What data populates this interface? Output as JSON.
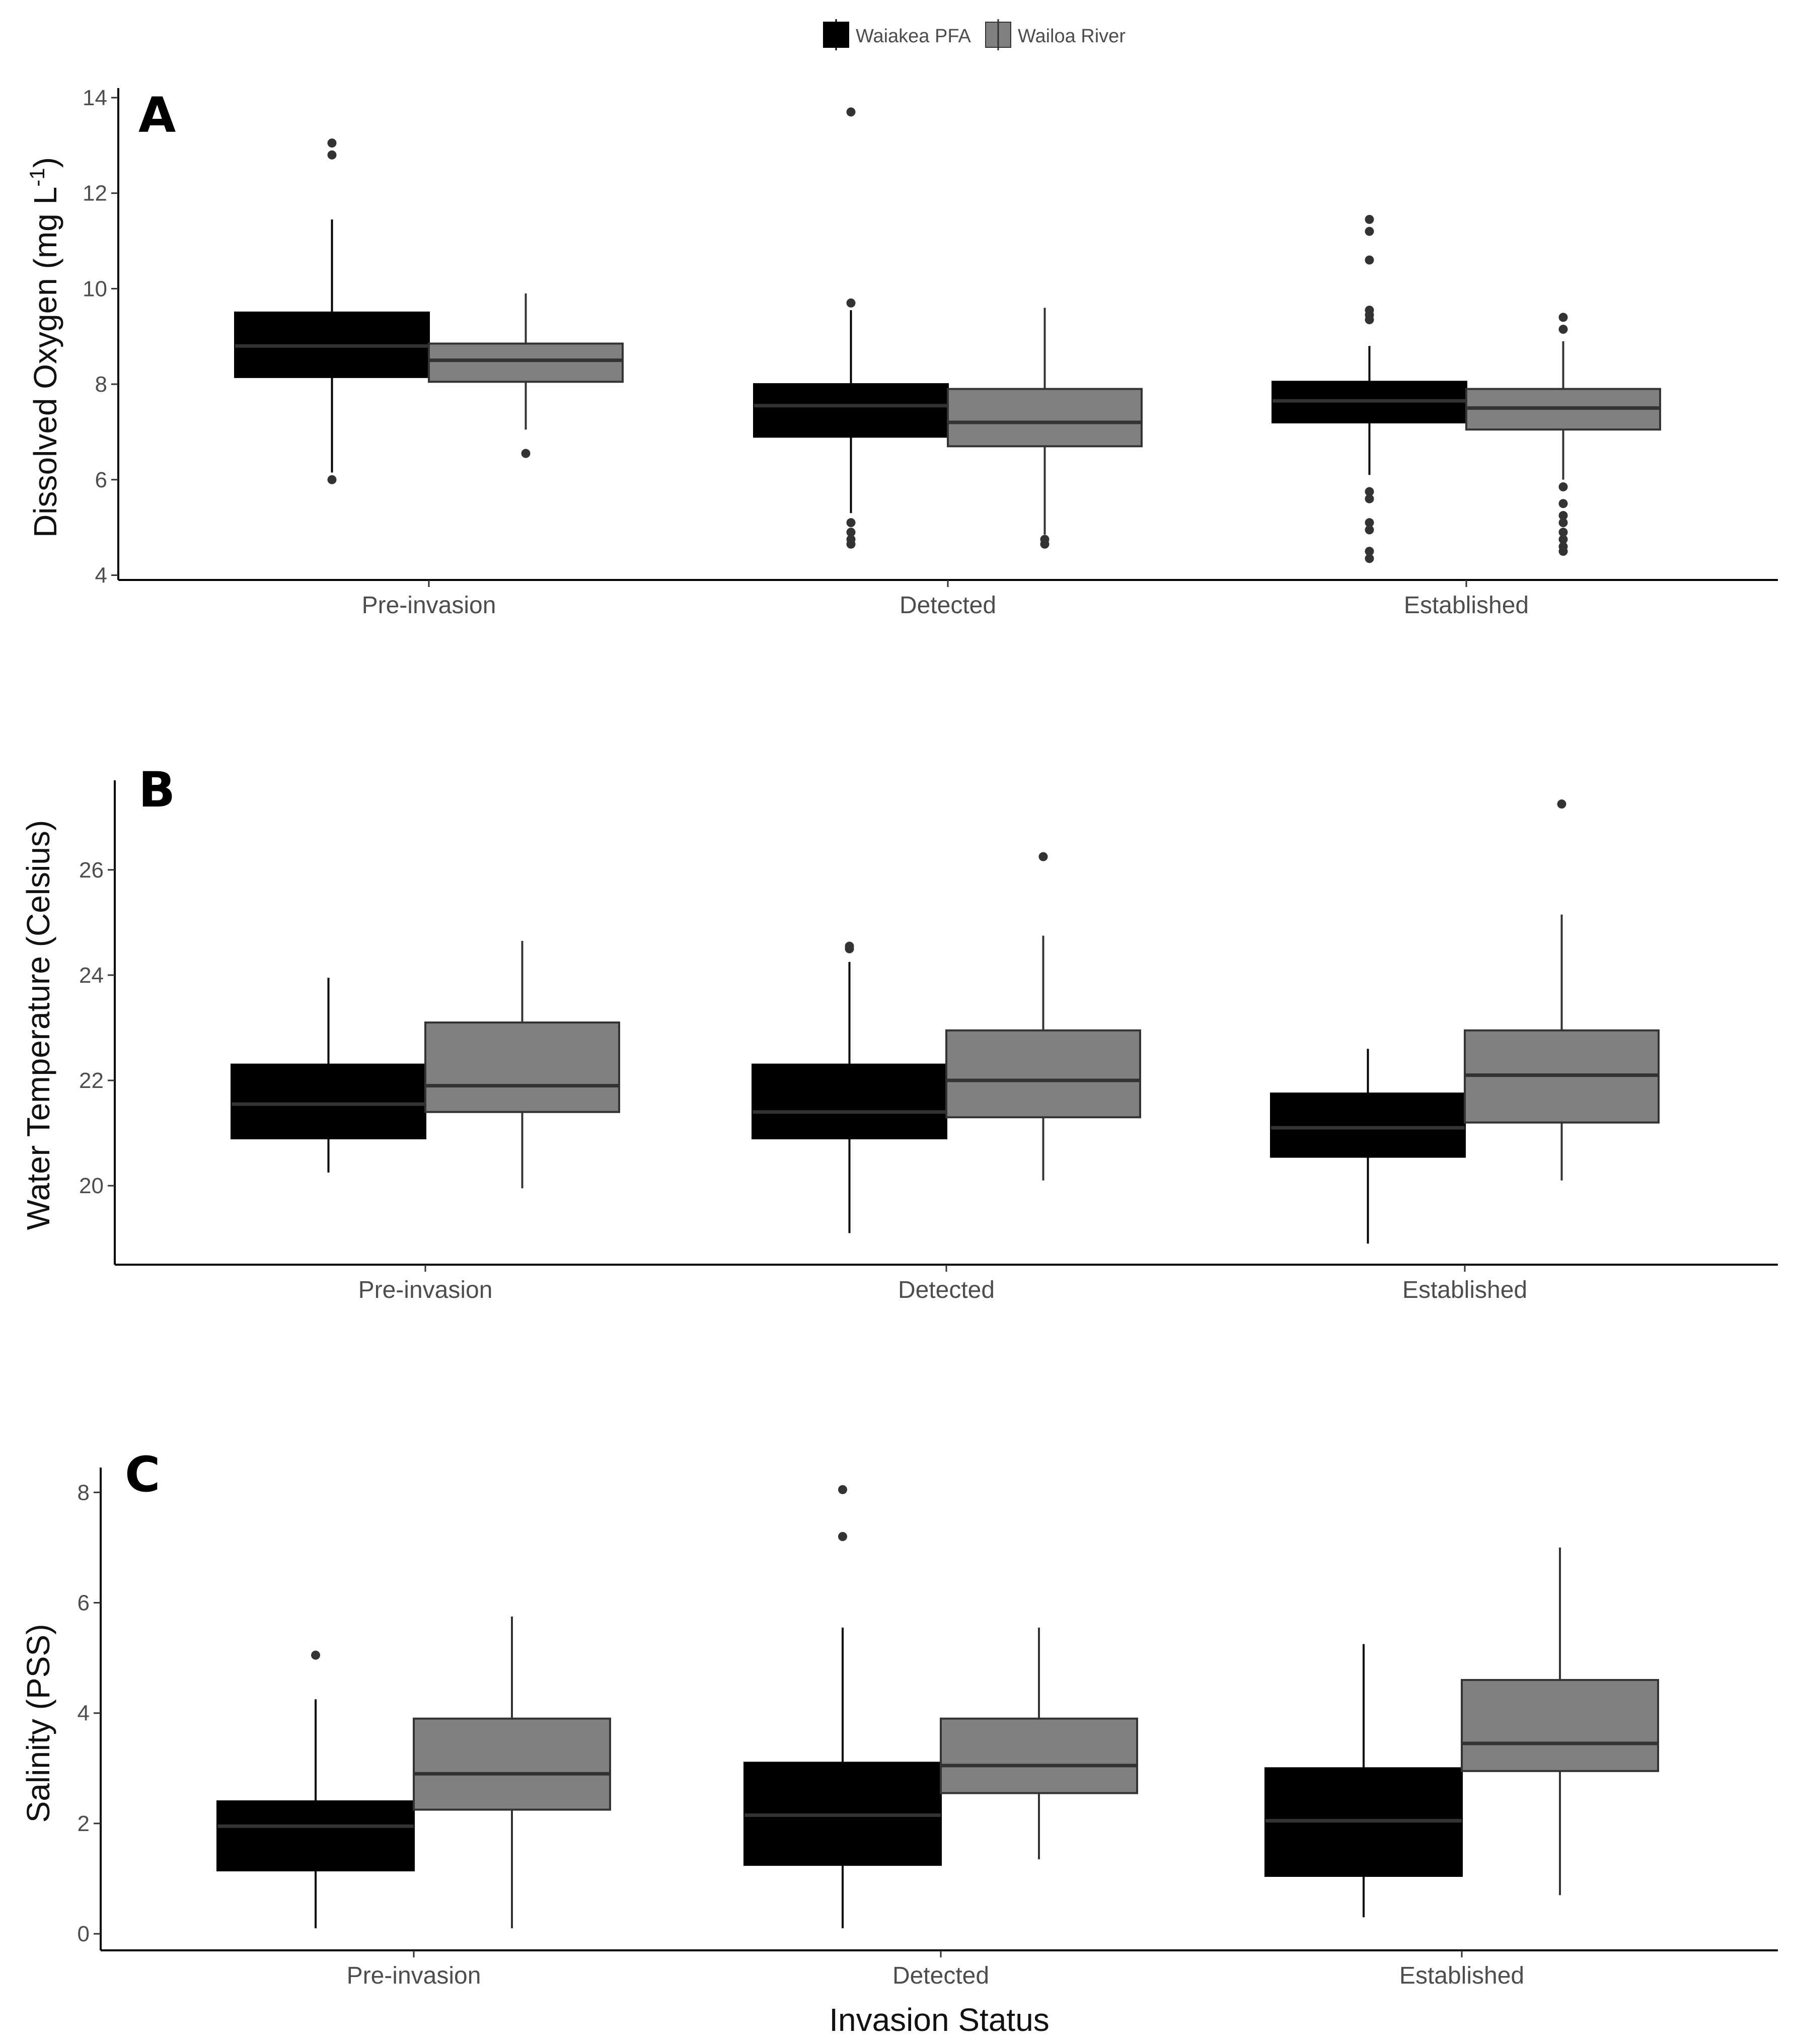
{
  "legend": {
    "entries": [
      {
        "label": "Waiakea PFA",
        "color": "#000000"
      },
      {
        "label": "Wailoa River",
        "color": "#808080"
      }
    ],
    "placement": "top-center"
  },
  "x_title": "Invasion Status",
  "chart_data": [
    {
      "type": "boxplot",
      "panel_label": "A",
      "ylabel": "Dissolved Oxygen (mg L-1)",
      "ylabel_parts": {
        "main": "Dissolved Oxygen  (mg L",
        "superscript": "-1",
        "close": ")"
      },
      "categories": [
        "Pre-invasion",
        "Detected",
        "Established"
      ],
      "ylim": [
        3.9,
        14.2
      ],
      "yticks": [
        4,
        6,
        8,
        10,
        12,
        14
      ],
      "series": [
        {
          "name": "Waiakea PFA",
          "color": "#000000",
          "boxes": [
            {
              "min": 6.15,
              "q1": 8.15,
              "median": 8.8,
              "q3": 9.5,
              "max": 11.45,
              "outliers": [
                6.0,
                12.8,
                13.05
              ]
            },
            {
              "min": 5.3,
              "q1": 6.9,
              "median": 7.55,
              "q3": 8.0,
              "max": 9.55,
              "outliers": [
                4.65,
                4.75,
                4.9,
                5.1,
                9.7,
                13.7
              ]
            },
            {
              "min": 6.1,
              "q1": 7.2,
              "median": 7.65,
              "q3": 8.05,
              "max": 8.8,
              "outliers": [
                4.35,
                4.5,
                4.95,
                5.1,
                5.6,
                5.75,
                9.35,
                9.45,
                9.55,
                10.6,
                11.2,
                11.45
              ]
            }
          ]
        },
        {
          "name": "Wailoa River",
          "color": "#808080",
          "boxes": [
            {
              "min": 7.05,
              "q1": 8.05,
              "median": 8.5,
              "q3": 8.85,
              "max": 9.9,
              "outliers": [
                6.55
              ]
            },
            {
              "min": 4.85,
              "q1": 6.7,
              "median": 7.2,
              "q3": 7.9,
              "max": 9.6,
              "outliers": [
                4.65,
                4.75
              ]
            },
            {
              "min": 6.0,
              "q1": 7.05,
              "median": 7.5,
              "q3": 7.9,
              "max": 8.9,
              "outliers": [
                4.5,
                4.6,
                4.75,
                4.9,
                5.1,
                5.25,
                5.5,
                5.85,
                9.15,
                9.4
              ]
            }
          ]
        }
      ]
    },
    {
      "type": "boxplot",
      "panel_label": "B",
      "ylabel": "Water Temperature  (Celsius)",
      "categories": [
        "Pre-invasion",
        "Detected",
        "Established"
      ],
      "ylim": [
        18.5,
        27.7
      ],
      "yticks": [
        20,
        22,
        24,
        26
      ],
      "series": [
        {
          "name": "Waiakea PFA",
          "color": "#000000",
          "boxes": [
            {
              "min": 20.25,
              "q1": 20.9,
              "median": 21.55,
              "q3": 22.3,
              "max": 23.95,
              "outliers": []
            },
            {
              "min": 19.1,
              "q1": 20.9,
              "median": 21.4,
              "q3": 22.3,
              "max": 24.25,
              "outliers": [
                24.5,
                24.55
              ]
            },
            {
              "min": 18.9,
              "q1": 20.55,
              "median": 21.1,
              "q3": 21.75,
              "max": 22.6,
              "outliers": []
            }
          ]
        },
        {
          "name": "Wailoa River",
          "color": "#808080",
          "boxes": [
            {
              "min": 19.95,
              "q1": 21.4,
              "median": 21.9,
              "q3": 23.1,
              "max": 24.65,
              "outliers": []
            },
            {
              "min": 20.1,
              "q1": 21.3,
              "median": 22.0,
              "q3": 22.95,
              "max": 24.75,
              "outliers": [
                26.25
              ]
            },
            {
              "min": 20.1,
              "q1": 21.2,
              "median": 22.1,
              "q3": 22.95,
              "max": 25.15,
              "outliers": [
                27.25
              ]
            }
          ]
        }
      ]
    },
    {
      "type": "boxplot",
      "panel_label": "C",
      "ylabel": "Salinity  (PSS)",
      "categories": [
        "Pre-invasion",
        "Detected",
        "Established"
      ],
      "ylim": [
        -0.3,
        8.45
      ],
      "yticks": [
        0,
        2,
        4,
        6,
        8
      ],
      "series": [
        {
          "name": "Waiakea PFA",
          "color": "#000000",
          "boxes": [
            {
              "min": 0.1,
              "q1": 1.15,
              "median": 1.95,
              "q3": 2.4,
              "max": 4.25,
              "outliers": [
                5.05
              ]
            },
            {
              "min": 0.1,
              "q1": 1.25,
              "median": 2.15,
              "q3": 3.1,
              "max": 5.55,
              "outliers": [
                7.2,
                8.05
              ]
            },
            {
              "min": 0.3,
              "q1": 1.05,
              "median": 2.05,
              "q3": 3.0,
              "max": 5.25,
              "outliers": []
            }
          ]
        },
        {
          "name": "Wailoa River",
          "color": "#808080",
          "boxes": [
            {
              "min": 0.1,
              "q1": 2.25,
              "median": 2.9,
              "q3": 3.9,
              "max": 5.75,
              "outliers": []
            },
            {
              "min": 1.35,
              "q1": 2.55,
              "median": 3.05,
              "q3": 3.9,
              "max": 5.55,
              "outliers": []
            },
            {
              "min": 0.7,
              "q1": 2.95,
              "median": 3.45,
              "q3": 4.6,
              "max": 7.0,
              "outliers": []
            }
          ]
        }
      ]
    }
  ]
}
